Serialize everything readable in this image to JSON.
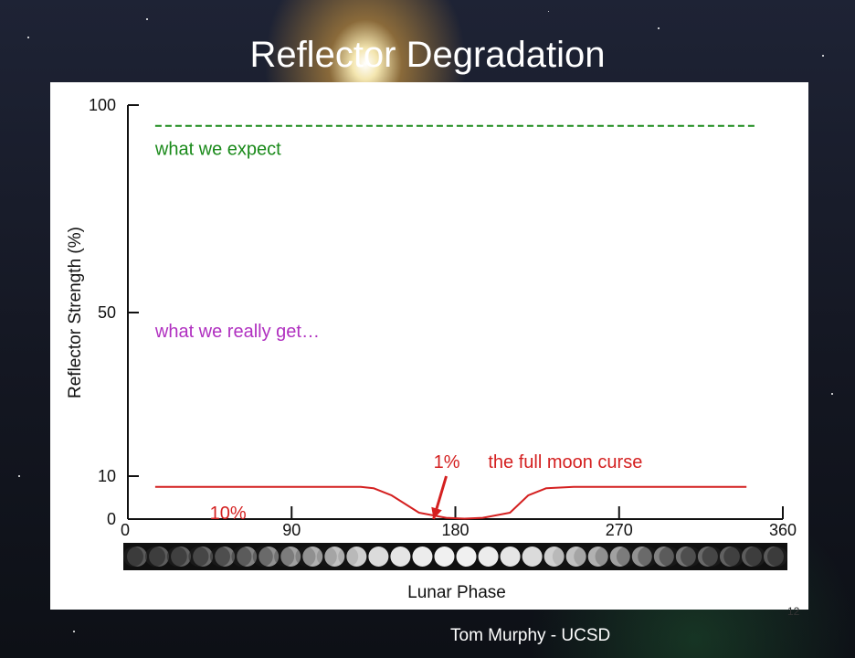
{
  "slide": {
    "title": "Reflector Degradation",
    "footer": "Tom Murphy  -  UCSD",
    "page_number": "12"
  },
  "chart_data": {
    "type": "line",
    "title": "",
    "xlabel": "Lunar Phase",
    "ylabel": "Reflector Strength (%)",
    "xlim": [
      0,
      360
    ],
    "xticks": [
      0,
      90,
      180,
      270,
      360
    ],
    "yticks": [
      0,
      10,
      50,
      100
    ],
    "series": [
      {
        "name": "what we expect",
        "color": "#1a8a1a",
        "style": "dashed",
        "x": [
          15,
          345
        ],
        "y": [
          95,
          95
        ]
      },
      {
        "name": "",
        "color": "#d42020",
        "style": "solid",
        "x": [
          15,
          70,
          100,
          128,
          135,
          145,
          160,
          175,
          185,
          195,
          210,
          220,
          230,
          245,
          270,
          300,
          340
        ],
        "y": [
          7.5,
          7.5,
          7.5,
          7.5,
          7.2,
          5.5,
          1.5,
          0.3,
          0.1,
          0.3,
          1.5,
          5.5,
          7.2,
          7.5,
          7.5,
          7.5,
          7.5
        ]
      }
    ],
    "annotations": [
      {
        "text": "what we expect",
        "color": "#1a8a1a",
        "x": 15,
        "y": 88
      },
      {
        "text": "what we really get…",
        "color": "#b030c0",
        "x": 15,
        "y": 44
      },
      {
        "text": "10%",
        "color": "#d42020",
        "x": 45,
        "y": 0
      },
      {
        "text": "1%",
        "color": "#d42020",
        "x": 168,
        "y": 12
      },
      {
        "text": "the full moon curse",
        "color": "#d42020",
        "x": 198,
        "y": 12
      }
    ],
    "arrow": {
      "from": [
        175,
        10
      ],
      "to": [
        168,
        0
      ],
      "color": "#d42020"
    }
  }
}
